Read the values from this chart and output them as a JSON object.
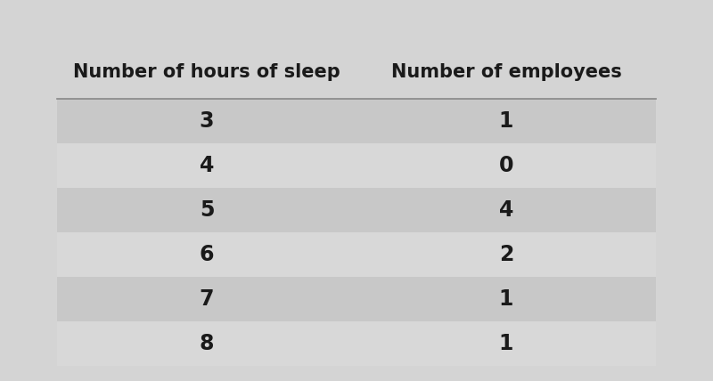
{
  "col_headers": [
    "Number of hours of sleep",
    "Number of employees"
  ],
  "rows": [
    [
      "3",
      "1"
    ],
    [
      "4",
      "0"
    ],
    [
      "5",
      "4"
    ],
    [
      "6",
      "2"
    ],
    [
      "7",
      "1"
    ],
    [
      "8",
      "1"
    ]
  ],
  "shaded_rows": [
    0,
    2,
    4
  ],
  "row_shaded_color": "#c8c8c8",
  "row_unshaded_color": "#d8d8d8",
  "header_line_color": "#888888",
  "text_color": "#1a1a1a",
  "header_color": "#1a1a1a",
  "header_fontsize": 15,
  "cell_fontsize": 17,
  "fig_bg_color": "#d4d4d4"
}
